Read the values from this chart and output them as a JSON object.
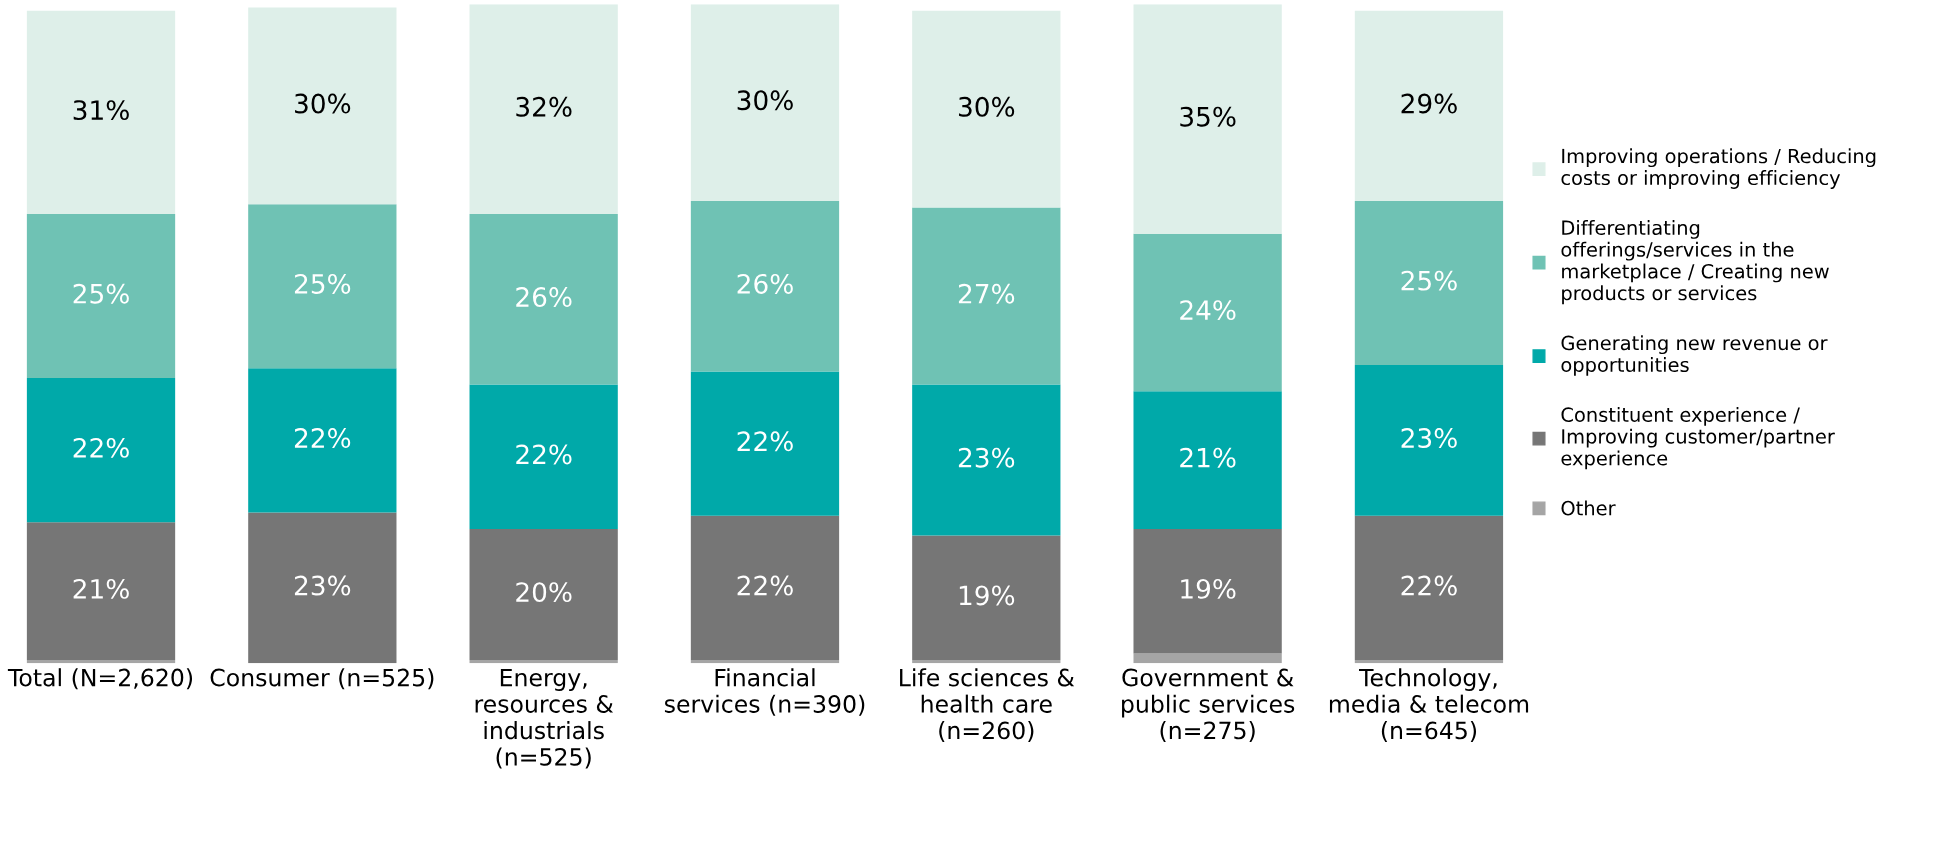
{
  "chart_data": {
    "type": "bar",
    "stacked": true,
    "categories": [
      "Total (N=2,620)",
      "Consumer (n=525)",
      "Energy, resources & industrials (n=525)",
      "Financial services (n=390)",
      "Life sciences & health care (n=260)",
      "Government & public services (n=275)",
      "Technology, media & telecom (n=645)"
    ],
    "series": [
      {
        "name": "Other",
        "color": "#a5a5a5",
        "values": [
          0.5,
          0,
          0.5,
          0.5,
          0.5,
          1.5,
          0.5
        ],
        "value_labels": [
          null,
          null,
          null,
          null,
          null,
          null,
          null
        ]
      },
      {
        "name": "Constituent experience / Improving customer/partner experience",
        "color": "#767676",
        "values": [
          21,
          23,
          20,
          22,
          19,
          19,
          22
        ],
        "value_labels": [
          "21%",
          "23%",
          "20%",
          "22%",
          "19%",
          "19%",
          "22%"
        ]
      },
      {
        "name": "Generating new revenue or opportunities",
        "color": "#00a9a9",
        "values": [
          22,
          22,
          22,
          22,
          23,
          21,
          23
        ],
        "value_labels": [
          "22%",
          "22%",
          "22%",
          "22%",
          "23%",
          "21%",
          "23%"
        ]
      },
      {
        "name": "Differentiating offerings/services in the marketplace / Creating new products or services",
        "color": "#6fc2b4",
        "values": [
          25,
          25,
          26,
          26,
          27,
          24,
          25
        ],
        "value_labels": [
          "25%",
          "25%",
          "26%",
          "26%",
          "27%",
          "24%",
          "25%"
        ]
      },
      {
        "name": "Improving operations / Reducing costs or improving efficiency",
        "color": "#deefe9",
        "values": [
          31,
          30,
          32,
          30,
          30,
          35,
          29
        ],
        "value_labels": [
          "31%",
          "30%",
          "32%",
          "30%",
          "30%",
          "35%",
          "29%"
        ]
      }
    ],
    "legend": "right",
    "grid": false,
    "tick_labels": "x"
  }
}
